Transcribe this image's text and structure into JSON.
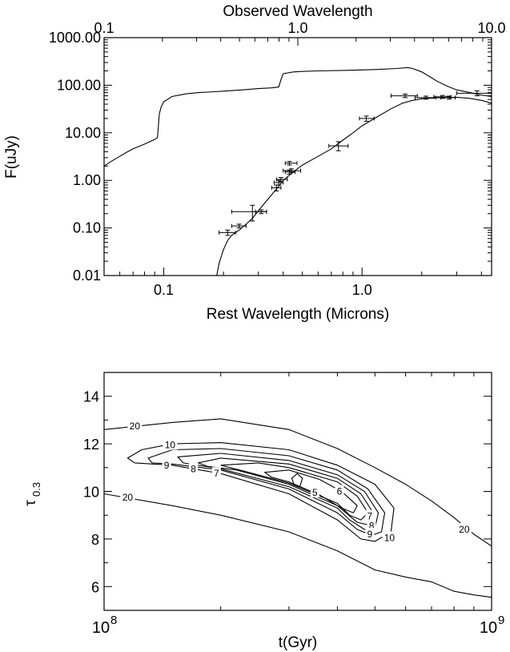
{
  "chart_data": [
    {
      "type": "line",
      "xlabel": "Rest Wavelength (Microns)",
      "x2label": "Observed Wavelength",
      "ylabel": "F(uJy)",
      "xscale": "log",
      "yscale": "log",
      "xlim": [
        0.05,
        4.5
      ],
      "ylim": [
        0.01,
        1000
      ],
      "x2lim": [
        0.1,
        10.0
      ],
      "xticks": [
        {
          "v": 0.1,
          "label": "0.1"
        },
        {
          "v": 1.0,
          "label": "1.0"
        }
      ],
      "x2ticks": [
        {
          "v": 0.1,
          "label": "0.1"
        },
        {
          "v": 1.0,
          "label": "1.0"
        },
        {
          "v": 10.0,
          "label": "10.0"
        }
      ],
      "yticks": [
        {
          "v": 0.01,
          "label": "0.01"
        },
        {
          "v": 0.1,
          "label": "0.10"
        },
        {
          "v": 1,
          "label": "1.00"
        },
        {
          "v": 10,
          "label": "10.00"
        },
        {
          "v": 100,
          "label": "100.00"
        },
        {
          "v": 1000,
          "label": "1000.00"
        }
      ],
      "series": [
        {
          "style": "upper-sed",
          "points": [
            [
              0.05,
              2.0
            ],
            [
              0.055,
              2.6
            ],
            [
              0.06,
              3.2
            ],
            [
              0.065,
              3.9
            ],
            [
              0.07,
              4.6
            ],
            [
              0.075,
              5.2
            ],
            [
              0.08,
              5.8
            ],
            [
              0.085,
              6.5
            ],
            [
              0.09,
              7.2
            ],
            [
              0.093,
              8.0
            ],
            [
              0.095,
              25
            ],
            [
              0.097,
              35
            ],
            [
              0.1,
              45
            ],
            [
              0.11,
              58
            ],
            [
              0.12,
              62
            ],
            [
              0.13,
              66
            ],
            [
              0.15,
              70
            ],
            [
              0.18,
              73
            ],
            [
              0.2,
              75
            ],
            [
              0.25,
              80
            ],
            [
              0.3,
              85
            ],
            [
              0.35,
              88
            ],
            [
              0.38,
              92
            ],
            [
              0.39,
              130
            ],
            [
              0.4,
              175
            ],
            [
              0.45,
              190
            ],
            [
              0.5,
              195
            ],
            [
              0.6,
              200
            ],
            [
              0.8,
              205
            ],
            [
              1.0,
              210
            ],
            [
              1.2,
              215
            ],
            [
              1.5,
              225
            ],
            [
              1.7,
              235
            ],
            [
              1.8,
              225
            ],
            [
              2.0,
              190
            ],
            [
              2.2,
              150
            ],
            [
              2.4,
              120
            ],
            [
              2.7,
              95
            ],
            [
              3.0,
              80
            ],
            [
              3.5,
              70
            ],
            [
              4.0,
              62
            ],
            [
              4.5,
              58
            ]
          ]
        },
        {
          "style": "lower-sed",
          "points": [
            [
              0.185,
              0.01
            ],
            [
              0.19,
              0.018
            ],
            [
              0.2,
              0.035
            ],
            [
              0.21,
              0.055
            ],
            [
              0.22,
              0.07
            ],
            [
              0.24,
              0.09
            ],
            [
              0.26,
              0.12
            ],
            [
              0.28,
              0.16
            ],
            [
              0.3,
              0.23
            ],
            [
              0.32,
              0.32
            ],
            [
              0.35,
              0.5
            ],
            [
              0.38,
              0.75
            ],
            [
              0.4,
              1.0
            ],
            [
              0.45,
              1.5
            ],
            [
              0.5,
              2.1
            ],
            [
              0.6,
              3.2
            ],
            [
              0.7,
              4.6
            ],
            [
              0.8,
              7.0
            ],
            [
              0.9,
              10
            ],
            [
              1.0,
              14
            ],
            [
              1.2,
              22
            ],
            [
              1.4,
              32
            ],
            [
              1.6,
              42
            ],
            [
              1.8,
              48
            ],
            [
              2.0,
              52
            ],
            [
              2.5,
              55
            ],
            [
              3.0,
              56
            ],
            [
              3.5,
              53
            ],
            [
              4.0,
              48
            ],
            [
              4.5,
              42
            ]
          ]
        }
      ],
      "errorbars": [
        {
          "x": 0.21,
          "y": 0.08,
          "xlo": 0.19,
          "xhi": 0.23,
          "ylo": 0.07,
          "yhi": 0.09
        },
        {
          "x": 0.24,
          "y": 0.11,
          "xlo": 0.22,
          "xhi": 0.26,
          "ylo": 0.1,
          "yhi": 0.12
        },
        {
          "x": 0.28,
          "y": 0.22,
          "xlo": 0.22,
          "xhi": 0.33,
          "ylo": 0.14,
          "yhi": 0.3
        },
        {
          "x": 0.31,
          "y": 0.22,
          "xlo": 0.29,
          "xhi": 0.33,
          "ylo": 0.2,
          "yhi": 0.24
        },
        {
          "x": 0.37,
          "y": 0.7,
          "xlo": 0.35,
          "xhi": 0.39,
          "ylo": 0.6,
          "yhi": 0.8
        },
        {
          "x": 0.38,
          "y": 0.9,
          "xlo": 0.36,
          "xhi": 0.4,
          "ylo": 0.8,
          "yhi": 1.0
        },
        {
          "x": 0.39,
          "y": 1.05,
          "xlo": 0.37,
          "xhi": 0.42,
          "ylo": 0.95,
          "yhi": 1.15
        },
        {
          "x": 0.43,
          "y": 1.5,
          "xlo": 0.41,
          "xhi": 0.46,
          "ylo": 1.35,
          "yhi": 1.65
        },
        {
          "x": 0.44,
          "y": 1.6,
          "xlo": 0.4,
          "xhi": 0.49,
          "ylo": 1.45,
          "yhi": 1.75
        },
        {
          "x": 0.43,
          "y": 2.3,
          "xlo": 0.41,
          "xhi": 0.47,
          "ylo": 2.1,
          "yhi": 2.5
        },
        {
          "x": 0.76,
          "y": 5.3,
          "xlo": 0.68,
          "xhi": 0.85,
          "ylo": 4.2,
          "yhi": 6.5
        },
        {
          "x": 1.05,
          "y": 20,
          "xlo": 0.97,
          "xhi": 1.15,
          "ylo": 17.5,
          "yhi": 22.5
        },
        {
          "x": 1.65,
          "y": 60,
          "xlo": 1.4,
          "xhi": 1.9,
          "ylo": 55,
          "yhi": 65
        },
        {
          "x": 2.1,
          "y": 55,
          "xlo": 1.85,
          "xhi": 2.35,
          "ylo": 51,
          "yhi": 59
        },
        {
          "x": 2.55,
          "y": 57,
          "xlo": 2.3,
          "xhi": 2.8,
          "ylo": 53,
          "yhi": 61
        },
        {
          "x": 2.75,
          "y": 55,
          "xlo": 2.5,
          "xhi": 2.95,
          "ylo": 51,
          "yhi": 59
        },
        {
          "x": 3.8,
          "y": 68,
          "xlo": 3.0,
          "xhi": 4.5,
          "ylo": 60,
          "yhi": 76
        }
      ]
    },
    {
      "type": "contour",
      "xlabel": "t(Gyr)",
      "ylabel": "τ",
      "ylabel_sub": "0.3",
      "xscale": "log",
      "xlim": [
        100000000,
        1000000000
      ],
      "ylim": [
        5,
        15
      ],
      "xticks": [
        {
          "v": 100000000,
          "base": "10",
          "exp": "8"
        },
        {
          "v": 1000000000,
          "base": "10",
          "exp": "9"
        }
      ],
      "yticks": [
        {
          "v": 6,
          "label": "6"
        },
        {
          "v": 8,
          "label": "8"
        },
        {
          "v": 10,
          "label": "10"
        },
        {
          "v": 12,
          "label": "12"
        },
        {
          "v": 14,
          "label": "14"
        }
      ],
      "contours": [
        {
          "level": "20",
          "upper": [
            [
              100000000.0,
              12.6
            ],
            [
              150000000.0,
              12.9
            ],
            [
              200000000.0,
              13.05
            ],
            [
              300000000.0,
              12.6
            ],
            [
              400000000.0,
              11.8
            ],
            [
              500000000.0,
              11.0
            ],
            [
              600000000.0,
              10.3
            ],
            [
              700000000.0,
              9.6
            ],
            [
              800000000.0,
              8.9
            ],
            [
              900000000.0,
              8.2
            ],
            [
              1000000000.0,
              7.7
            ]
          ],
          "lower": [
            [
              100000000.0,
              9.9
            ],
            [
              150000000.0,
              9.4
            ],
            [
              200000000.0,
              9.0
            ],
            [
              300000000.0,
              8.3
            ],
            [
              400000000.0,
              7.5
            ],
            [
              500000000.0,
              6.7
            ],
            [
              600000000.0,
              6.4
            ],
            [
              700000000.0,
              6.2
            ],
            [
              800000000.0,
              5.8
            ],
            [
              900000000.0,
              5.65
            ],
            [
              1000000000.0,
              5.55
            ]
          ]
        },
        {
          "level": "10",
          "loop": [
            [
              115000000.0,
              11.4
            ],
            [
              125000000.0,
              11.75
            ],
            [
              150000000.0,
              12.0
            ],
            [
              200000000.0,
              12.05
            ],
            [
              300000000.0,
              11.75
            ],
            [
              400000000.0,
              11.1
            ],
            [
              500000000.0,
              10.3
            ],
            [
              560000000.0,
              9.3
            ],
            [
              550000000.0,
              8.3
            ],
            [
              500000000.0,
              7.9
            ],
            [
              460000000.0,
              8.0
            ],
            [
              400000000.0,
              8.8
            ],
            [
              300000000.0,
              9.9
            ],
            [
              200000000.0,
              10.75
            ],
            [
              150000000.0,
              11.1
            ],
            [
              120000000.0,
              11.2
            ]
          ]
        },
        {
          "level": "9",
          "loop": [
            [
              130000000.0,
              11.4
            ],
            [
              150000000.0,
              11.75
            ],
            [
              200000000.0,
              11.8
            ],
            [
              300000000.0,
              11.5
            ],
            [
              400000000.0,
              10.9
            ],
            [
              480000000.0,
              10.1
            ],
            [
              530000000.0,
              9.1
            ],
            [
              520000000.0,
              8.3
            ],
            [
              490000000.0,
              8.15
            ],
            [
              450000000.0,
              8.4
            ],
            [
              400000000.0,
              9.1
            ],
            [
              300000000.0,
              10.1
            ],
            [
              200000000.0,
              10.9
            ],
            [
              150000000.0,
              11.15
            ],
            [
              133000000.0,
              11.2
            ]
          ]
        },
        {
          "level": "8",
          "loop": [
            [
              155000000.0,
              11.45
            ],
            [
              200000000.0,
              11.6
            ],
            [
              300000000.0,
              11.3
            ],
            [
              400000000.0,
              10.7
            ],
            [
              470000000.0,
              10.0
            ],
            [
              510000000.0,
              9.1
            ],
            [
              500000000.0,
              8.45
            ],
            [
              470000000.0,
              8.4
            ],
            [
              430000000.0,
              8.8
            ],
            [
              400000000.0,
              9.3
            ],
            [
              300000000.0,
              10.2
            ],
            [
              200000000.0,
              10.95
            ],
            [
              160000000.0,
              11.2
            ]
          ]
        },
        {
          "level": "7",
          "loop": [
            [
              175000000.0,
              11.2
            ],
            [
              200000000.0,
              11.4
            ],
            [
              300000000.0,
              11.15
            ],
            [
              400000000.0,
              10.55
            ],
            [
              460000000.0,
              9.9
            ],
            [
              495000000.0,
              9.1
            ],
            [
              480000000.0,
              8.6
            ],
            [
              450000000.0,
              8.7
            ],
            [
              400000000.0,
              9.4
            ],
            [
              300000000.0,
              10.3
            ],
            [
              220000000.0,
              10.9
            ],
            [
              185000000.0,
              11.05
            ]
          ]
        },
        {
          "level": "6",
          "loop": [
            [
              200000000.0,
              11.1
            ],
            [
              250000000.0,
              11.2
            ],
            [
              300000000.0,
              11.0
            ],
            [
              400000000.0,
              10.4
            ],
            [
              450000000.0,
              9.8
            ],
            [
              480000000.0,
              9.1
            ],
            [
              460000000.0,
              8.8
            ],
            [
              430000000.0,
              9.0
            ],
            [
              400000000.0,
              9.5
            ],
            [
              300000000.0,
              10.35
            ],
            [
              230000000.0,
              10.85
            ]
          ]
        },
        {
          "level": "5",
          "loop": [
            [
              260000000.0,
              10.8
            ],
            [
              300000000.0,
              10.9
            ],
            [
              360000000.0,
              10.5
            ],
            [
              410000000.0,
              10.0
            ],
            [
              450000000.0,
              9.4
            ],
            [
              440000000.0,
              9.1
            ],
            [
              410000000.0,
              9.3
            ],
            [
              360000000.0,
              9.85
            ],
            [
              300000000.0,
              10.4
            ],
            [
              270000000.0,
              10.6
            ]
          ]
        },
        {
          "level": "",
          "loop": [
            [
              305000000.0,
              10.55
            ],
            [
              315000000.0,
              10.75
            ],
            [
              325000000.0,
              10.55
            ],
            [
              320000000.0,
              10.2
            ],
            [
              310000000.0,
              10.25
            ]
          ]
        }
      ],
      "contour_labels": [
        {
          "text": "20",
          "x": 120000000.0,
          "y": 12.75
        },
        {
          "text": "20",
          "x": 115000000.0,
          "y": 9.75
        },
        {
          "text": "20",
          "x": 850000000.0,
          "y": 8.4
        },
        {
          "text": "10",
          "x": 148000000.0,
          "y": 11.95
        },
        {
          "text": "9",
          "x": 145000000.0,
          "y": 11.1
        },
        {
          "text": "8",
          "x": 170000000.0,
          "y": 10.95
        },
        {
          "text": "7",
          "x": 195000000.0,
          "y": 10.75
        },
        {
          "text": "6",
          "x": 405000000.0,
          "y": 10.0
        },
        {
          "text": "5",
          "x": 350000000.0,
          "y": 9.95
        },
        {
          "text": "7",
          "x": 485000000.0,
          "y": 8.95
        },
        {
          "text": "8",
          "x": 490000000.0,
          "y": 8.55
        },
        {
          "text": "9",
          "x": 485000000.0,
          "y": 8.2
        },
        {
          "text": "10",
          "x": 545000000.0,
          "y": 8.05
        }
      ]
    }
  ]
}
